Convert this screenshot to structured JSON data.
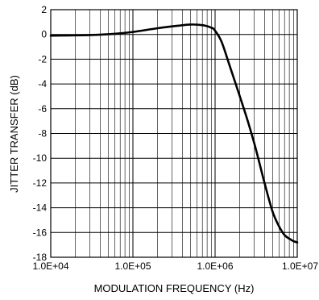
{
  "chart_data": {
    "type": "line",
    "title": "",
    "xlabel": "MODULATION FREQUENCY (Hz)",
    "ylabel": "JITTER TRANSFER (dB)",
    "xscale": "log",
    "xlim": [
      10000,
      10000000
    ],
    "ylim": [
      -18,
      2
    ],
    "xticks": [
      10000,
      100000,
      1000000,
      10000000
    ],
    "xtick_labels": [
      "1.0E+04",
      "1.0E+05",
      "1.0E+06",
      "1.0E+07"
    ],
    "yticks": [
      2,
      0,
      -2,
      -4,
      -6,
      -8,
      -10,
      -12,
      -14,
      -16,
      -18
    ],
    "ytick_labels": [
      "2",
      "0",
      "-2",
      "-4",
      "-6",
      "-8",
      "-10",
      "-12",
      "-14",
      "-16",
      "-18"
    ],
    "grid": true,
    "series": [
      {
        "x": [
          10000,
          30000,
          60000,
          100000,
          200000,
          350000,
          500000,
          700000,
          900000,
          1000000,
          1200000,
          1500000,
          2000000,
          2500000,
          3000000,
          3500000,
          4000000,
          5000000,
          6000000,
          7000000,
          8000000,
          9000000,
          10000000
        ],
        "y": [
          -0.1,
          -0.05,
          0.05,
          0.2,
          0.5,
          0.7,
          0.8,
          0.75,
          0.55,
          0.3,
          -0.6,
          -2.5,
          -5.0,
          -7.0,
          -8.8,
          -10.5,
          -12.0,
          -14.3,
          -15.5,
          -16.2,
          -16.5,
          -16.7,
          -16.8
        ]
      }
    ]
  }
}
